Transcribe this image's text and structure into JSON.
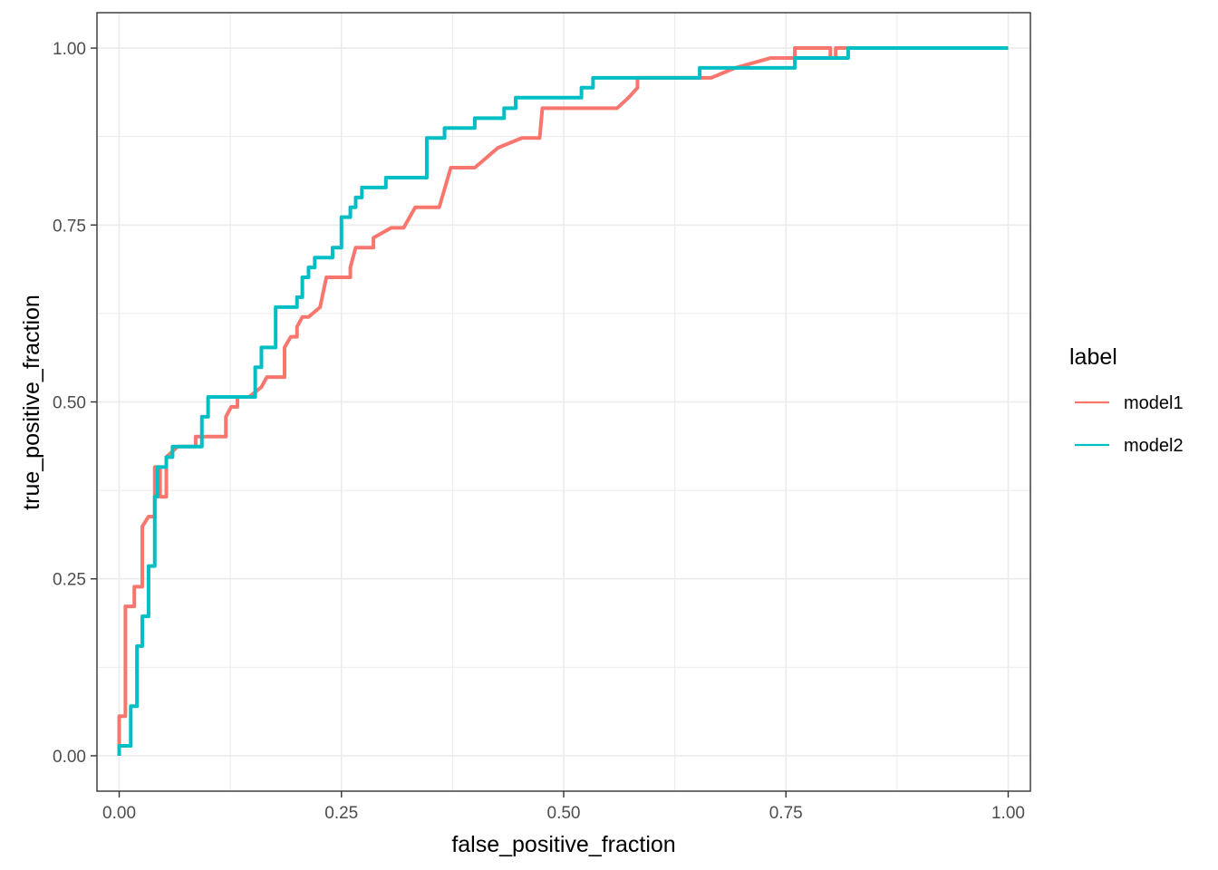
{
  "chart_data": {
    "type": "line",
    "xlabel": "false_positive_fraction",
    "ylabel": "true_positive_fraction",
    "xlim": [
      -0.025,
      1.025
    ],
    "ylim": [
      -0.05,
      1.05
    ],
    "x_ticks": [
      "0.00",
      "0.25",
      "0.50",
      "0.75",
      "1.00"
    ],
    "y_ticks": [
      "0.00",
      "0.25",
      "0.50",
      "0.75",
      "1.00"
    ],
    "grid": true,
    "legend": {
      "title": "label",
      "position": "right"
    },
    "series": [
      {
        "name": "model1",
        "color": "#F8766D",
        "points": [
          [
            0.0,
            0.0
          ],
          [
            0.0,
            0.056
          ],
          [
            0.007,
            0.056
          ],
          [
            0.007,
            0.211
          ],
          [
            0.017,
            0.211
          ],
          [
            0.017,
            0.239
          ],
          [
            0.026,
            0.239
          ],
          [
            0.026,
            0.324
          ],
          [
            0.033,
            0.338
          ],
          [
            0.04,
            0.338
          ],
          [
            0.04,
            0.408
          ],
          [
            0.046,
            0.408
          ],
          [
            0.046,
            0.366
          ],
          [
            0.053,
            0.366
          ],
          [
            0.053,
            0.422
          ],
          [
            0.066,
            0.437
          ],
          [
            0.086,
            0.437
          ],
          [
            0.086,
            0.451
          ],
          [
            0.12,
            0.451
          ],
          [
            0.12,
            0.479
          ],
          [
            0.126,
            0.493
          ],
          [
            0.133,
            0.493
          ],
          [
            0.133,
            0.507
          ],
          [
            0.146,
            0.507
          ],
          [
            0.16,
            0.521
          ],
          [
            0.166,
            0.535
          ],
          [
            0.186,
            0.535
          ],
          [
            0.186,
            0.577
          ],
          [
            0.193,
            0.592
          ],
          [
            0.2,
            0.592
          ],
          [
            0.2,
            0.606
          ],
          [
            0.206,
            0.62
          ],
          [
            0.213,
            0.62
          ],
          [
            0.226,
            0.634
          ],
          [
            0.233,
            0.676
          ],
          [
            0.253,
            0.676
          ],
          [
            0.26,
            0.676
          ],
          [
            0.26,
            0.69
          ],
          [
            0.266,
            0.718
          ],
          [
            0.286,
            0.718
          ],
          [
            0.286,
            0.732
          ],
          [
            0.306,
            0.746
          ],
          [
            0.32,
            0.746
          ],
          [
            0.333,
            0.775
          ],
          [
            0.36,
            0.775
          ],
          [
            0.373,
            0.831
          ],
          [
            0.4,
            0.831
          ],
          [
            0.413,
            0.845
          ],
          [
            0.426,
            0.859
          ],
          [
            0.453,
            0.873
          ],
          [
            0.473,
            0.873
          ],
          [
            0.476,
            0.915
          ],
          [
            0.56,
            0.915
          ],
          [
            0.573,
            0.93
          ],
          [
            0.583,
            0.944
          ],
          [
            0.583,
            0.958
          ],
          [
            0.666,
            0.958
          ],
          [
            0.693,
            0.972
          ],
          [
            0.733,
            0.986
          ],
          [
            0.76,
            0.986
          ],
          [
            0.76,
            1.0
          ],
          [
            0.8,
            1.0
          ],
          [
            0.8,
            0.986
          ],
          [
            0.806,
            0.986
          ],
          [
            0.806,
            1.0
          ],
          [
            1.0,
            1.0
          ]
        ]
      },
      {
        "name": "model2",
        "color": "#00BFC4",
        "points": [
          [
            0.0,
            0.0
          ],
          [
            0.0,
            0.014
          ],
          [
            0.007,
            0.014
          ],
          [
            0.013,
            0.014
          ],
          [
            0.013,
            0.07
          ],
          [
            0.02,
            0.07
          ],
          [
            0.02,
            0.155
          ],
          [
            0.026,
            0.155
          ],
          [
            0.026,
            0.197
          ],
          [
            0.033,
            0.197
          ],
          [
            0.033,
            0.268
          ],
          [
            0.04,
            0.268
          ],
          [
            0.04,
            0.366
          ],
          [
            0.043,
            0.366
          ],
          [
            0.043,
            0.408
          ],
          [
            0.053,
            0.408
          ],
          [
            0.053,
            0.422
          ],
          [
            0.06,
            0.422
          ],
          [
            0.06,
            0.437
          ],
          [
            0.093,
            0.437
          ],
          [
            0.093,
            0.479
          ],
          [
            0.1,
            0.479
          ],
          [
            0.1,
            0.507
          ],
          [
            0.153,
            0.507
          ],
          [
            0.153,
            0.549
          ],
          [
            0.16,
            0.549
          ],
          [
            0.16,
            0.577
          ],
          [
            0.176,
            0.577
          ],
          [
            0.176,
            0.634
          ],
          [
            0.2,
            0.634
          ],
          [
            0.2,
            0.648
          ],
          [
            0.206,
            0.648
          ],
          [
            0.206,
            0.676
          ],
          [
            0.213,
            0.676
          ],
          [
            0.213,
            0.69
          ],
          [
            0.22,
            0.69
          ],
          [
            0.22,
            0.704
          ],
          [
            0.233,
            0.704
          ],
          [
            0.24,
            0.704
          ],
          [
            0.24,
            0.718
          ],
          [
            0.25,
            0.718
          ],
          [
            0.25,
            0.761
          ],
          [
            0.26,
            0.761
          ],
          [
            0.26,
            0.775
          ],
          [
            0.266,
            0.775
          ],
          [
            0.266,
            0.789
          ],
          [
            0.273,
            0.789
          ],
          [
            0.273,
            0.803
          ],
          [
            0.3,
            0.803
          ],
          [
            0.3,
            0.817
          ],
          [
            0.346,
            0.817
          ],
          [
            0.346,
            0.873
          ],
          [
            0.366,
            0.873
          ],
          [
            0.366,
            0.887
          ],
          [
            0.4,
            0.887
          ],
          [
            0.4,
            0.901
          ],
          [
            0.433,
            0.901
          ],
          [
            0.433,
            0.915
          ],
          [
            0.446,
            0.915
          ],
          [
            0.446,
            0.93
          ],
          [
            0.52,
            0.93
          ],
          [
            0.52,
            0.944
          ],
          [
            0.533,
            0.944
          ],
          [
            0.533,
            0.958
          ],
          [
            0.653,
            0.958
          ],
          [
            0.653,
            0.972
          ],
          [
            0.76,
            0.972
          ],
          [
            0.76,
            0.986
          ],
          [
            0.82,
            0.986
          ],
          [
            0.82,
            1.0
          ],
          [
            1.0,
            1.0
          ]
        ]
      }
    ]
  }
}
